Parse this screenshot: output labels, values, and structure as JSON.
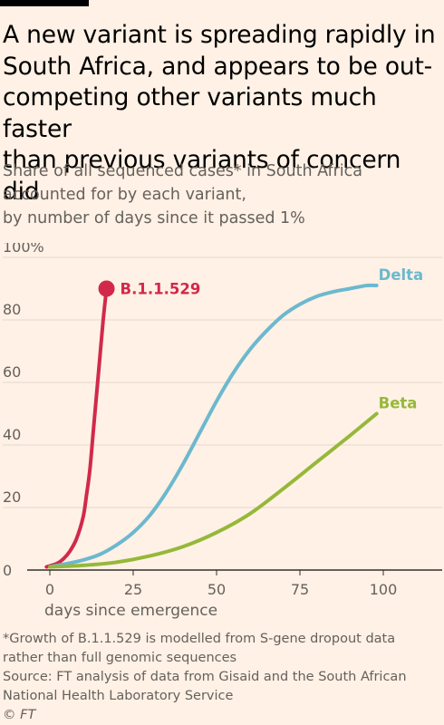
{
  "title": "A new variant is spreading rapidly in South Africa, and appears to be out-competing other variants much faster than previous variants of concern did",
  "title_lines": [
    "A new variant is spreading rapidly in",
    "South Africa, and appears to be out-",
    "competing other variants much faster",
    "than previous variants of concern did"
  ],
  "subtitle_lines": [
    "Share of all sequenced cases* in South Africa",
    "accounted for by each variant,",
    "by number of days since it passed 1%"
  ],
  "footnote_lines": [
    "*Growth of B.1.1.529 is modelled from S-gene dropout data",
    "rather than full genomic sequences"
  ],
  "source_lines": [
    "Source: FT analysis of data from Gisaid and the South African",
    "National Health Laboratory Service"
  ],
  "credit": "© FT",
  "chart_data": {
    "type": "line",
    "xlabel": "days since emergence",
    "ylabel": "",
    "xlim": [
      0,
      100
    ],
    "ylim": [
      0,
      100
    ],
    "x_ticks": [
      0,
      25,
      50,
      75,
      100
    ],
    "y_ticks": [
      0,
      20,
      40,
      60,
      80,
      100
    ],
    "y_tick_labels": [
      "0",
      "20",
      "40",
      "60",
      "80",
      "100%"
    ],
    "grid": true,
    "series": [
      {
        "name": "B.1.1.529",
        "color": "#d2294b",
        "end_marker": true,
        "x": [
          -1,
          2,
          4,
          6,
          8,
          10,
          11,
          12,
          13,
          14,
          15,
          16,
          17
        ],
        "y": [
          1,
          2,
          3.5,
          6,
          10,
          17,
          24,
          32,
          44,
          56,
          68,
          80,
          90
        ]
      },
      {
        "name": "Delta",
        "color": "#6cb8cf",
        "end_marker": false,
        "x": [
          0,
          5,
          10,
          15,
          20,
          25,
          30,
          35,
          40,
          45,
          50,
          55,
          60,
          65,
          70,
          75,
          80,
          85,
          90,
          95,
          98
        ],
        "y": [
          1,
          2,
          3.2,
          5,
          8,
          12,
          17.5,
          25,
          34,
          44,
          54,
          63,
          70.5,
          76.5,
          81.5,
          85,
          87.5,
          89,
          90,
          91,
          91
        ]
      },
      {
        "name": "Beta",
        "color": "#96b83a",
        "end_marker": false,
        "x": [
          0,
          10,
          20,
          30,
          40,
          50,
          60,
          70,
          80,
          90,
          98
        ],
        "y": [
          1,
          1.5,
          2.5,
          4.5,
          7.5,
          12,
          18,
          26,
          34.5,
          43,
          50
        ]
      }
    ]
  }
}
